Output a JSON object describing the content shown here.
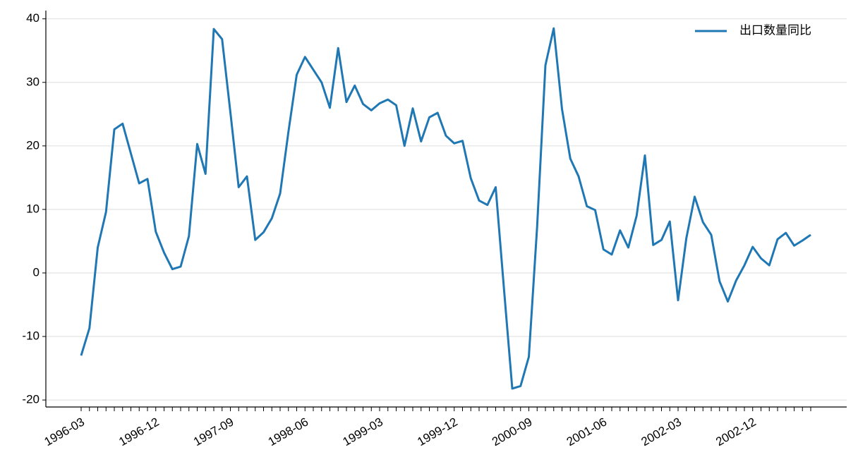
{
  "chart_data": {
    "type": "line",
    "categories": [
      "1996-03",
      null,
      null,
      null,
      null,
      null,
      null,
      null,
      null,
      "1996-12",
      null,
      null,
      null,
      null,
      null,
      null,
      null,
      null,
      "1997-09",
      null,
      null,
      null,
      null,
      null,
      null,
      null,
      null,
      "1998-06",
      null,
      null,
      null,
      null,
      null,
      null,
      null,
      null,
      "1999-03",
      null,
      null,
      null,
      null,
      null,
      null,
      null,
      null,
      "1999-12",
      null,
      null,
      null,
      null,
      null,
      null,
      null,
      null,
      "2000-09",
      null,
      null,
      null,
      null,
      null,
      null,
      null,
      null,
      "2001-06",
      null,
      null,
      null,
      null,
      null,
      null,
      null,
      null,
      "2002-03",
      null,
      null,
      null,
      null,
      null,
      null,
      null,
      null,
      "2002-12",
      null,
      null,
      null,
      null,
      null,
      null,
      null
    ],
    "series": [
      {
        "name": "出口数量同比",
        "color": "#1f77b4",
        "values": [
          -13,
          -8.7,
          4,
          9.6,
          22.6,
          23.5,
          18.8,
          14.1,
          14.8,
          6.5,
          3.2,
          0.6,
          1.0,
          5.8,
          20.3,
          15.6,
          38.4,
          36.8,
          25.3,
          13.5,
          15.2,
          5.2,
          6.4,
          8.6,
          12.5,
          22.2,
          31.2,
          34.0,
          32.0,
          30.0,
          26.0,
          35.4,
          26.9,
          29.5,
          26.6,
          25.6,
          26.7,
          27.3,
          26.4,
          20.0,
          25.9,
          20.7,
          24.5,
          25.2,
          21.6,
          20.4,
          20.8,
          14.9,
          11.4,
          10.7,
          13.5,
          -2.5,
          -18.2,
          -17.8,
          -13.2,
          7.3,
          32.7,
          38.5,
          25.8,
          18.0,
          15.2,
          10.5,
          9.9,
          3.7,
          2.9,
          6.7,
          4.0,
          9.0,
          18.5,
          4.4,
          5.2,
          8.1,
          -4.3,
          5.5,
          12.0,
          8.0,
          6.0,
          -1.3,
          -4.5,
          -1.2,
          1.2,
          4.1,
          2.3,
          1.2,
          5.3,
          6.3,
          4.3,
          5.1,
          6.0
        ]
      }
    ],
    "ylim": [
      -21.1,
      41.3
    ],
    "yticks": [
      -20,
      -10,
      0,
      10,
      20,
      30,
      40
    ],
    "grid": true,
    "legend": "upper right"
  }
}
